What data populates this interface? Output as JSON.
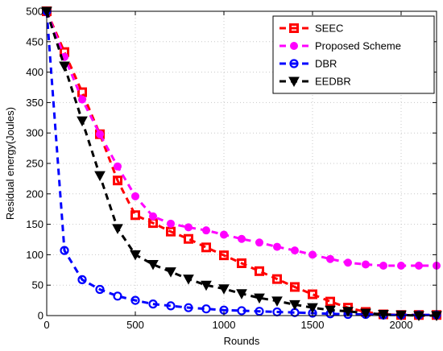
{
  "chart_data": {
    "type": "line",
    "title": "",
    "xlabel": "Rounds",
    "ylabel": "Residual energy(Joules)",
    "xlim": [
      0,
      2200
    ],
    "ylim": [
      0,
      500
    ],
    "xticks": [
      0,
      500,
      1000,
      1500,
      2000
    ],
    "yticks": [
      0,
      50,
      100,
      150,
      200,
      250,
      300,
      350,
      400,
      450,
      500
    ],
    "grid": "dotted",
    "legend_position": "top-right",
    "series": [
      {
        "name": "SEEC",
        "color": "#ff0000",
        "marker": "square",
        "x": [
          0,
          100,
          200,
          300,
          400,
          500,
          600,
          700,
          800,
          900,
          1000,
          1100,
          1200,
          1300,
          1400,
          1500,
          1600,
          1700,
          1800,
          1900,
          2000,
          2100,
          2200
        ],
        "y": [
          500,
          433,
          367,
          298,
          222,
          165,
          152,
          138,
          126,
          112,
          99,
          86,
          73,
          60,
          47,
          35,
          23,
          13,
          6,
          2,
          1,
          1,
          1
        ]
      },
      {
        "name": "Proposed Scheme",
        "color": "#ff00ff",
        "marker": "circle-filled",
        "x": [
          0,
          100,
          200,
          300,
          400,
          500,
          600,
          700,
          800,
          900,
          1000,
          1100,
          1200,
          1300,
          1400,
          1500,
          1600,
          1700,
          1800,
          1900,
          2000,
          2100,
          2200
        ],
        "y": [
          500,
          425,
          355,
          298,
          245,
          196,
          163,
          151,
          145,
          140,
          133,
          126,
          120,
          113,
          107,
          100,
          93,
          87,
          84,
          82,
          82,
          82,
          82
        ]
      },
      {
        "name": "DBR",
        "color": "#0000ff",
        "marker": "circle-open",
        "x": [
          0,
          100,
          200,
          300,
          400,
          500,
          600,
          700,
          800,
          900,
          1000,
          1100,
          1200,
          1300,
          1400,
          1500,
          1600,
          1700,
          1800,
          1900,
          2000,
          2100,
          2200
        ],
        "y": [
          500,
          107,
          59,
          43,
          32,
          25,
          19,
          16,
          13,
          11,
          9,
          8,
          7,
          6,
          5,
          4,
          3,
          2,
          2,
          1,
          1,
          1,
          1
        ]
      },
      {
        "name": "EEDBR",
        "color": "#000000",
        "marker": "triangle-down",
        "x": [
          0,
          100,
          200,
          300,
          400,
          500,
          600,
          700,
          800,
          900,
          1000,
          1100,
          1200,
          1300,
          1400,
          1500,
          1600,
          1700,
          1800,
          1900,
          2000,
          2100,
          2200
        ],
        "y": [
          500,
          410,
          320,
          230,
          143,
          100,
          84,
          72,
          60,
          50,
          44,
          36,
          29,
          24,
          18,
          13,
          9,
          7,
          4,
          2,
          1,
          0,
          0
        ]
      }
    ]
  }
}
